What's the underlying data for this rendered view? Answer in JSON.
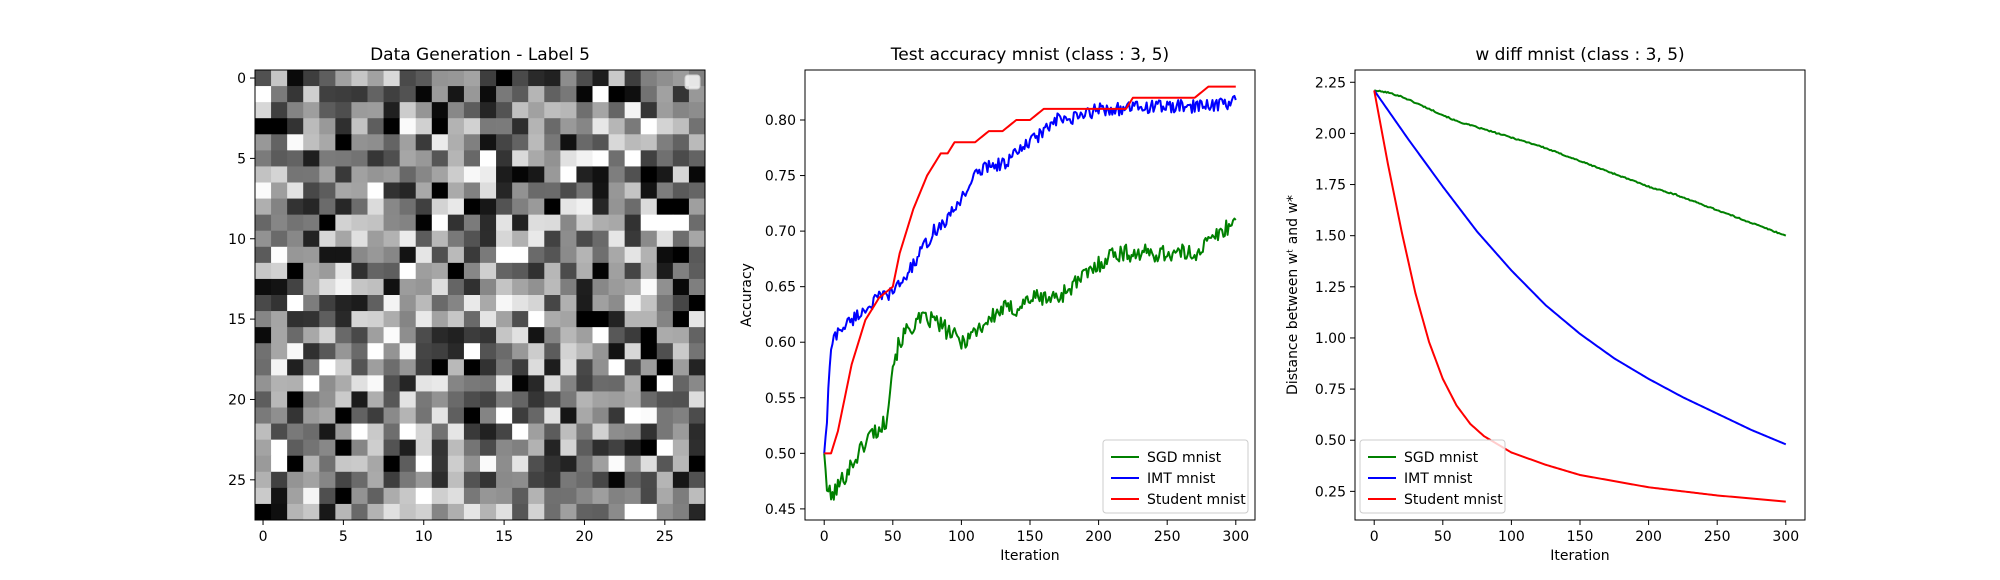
{
  "figure": {
    "panels": [
      {
        "title": "Data Generation - Label 5"
      },
      {
        "title": "Test accuracy mnist (class : 3, 5)",
        "xlabel": "Iteration",
        "ylabel": "Accuracy"
      },
      {
        "title": "w diff mnist (class : 3, 5)",
        "xlabel": "Iteration",
        "ylabel": "Distance between wᵗ and w*"
      }
    ]
  },
  "chart_data": [
    {
      "type": "heatmap",
      "title": "Data Generation - Label 5",
      "colormap": "gray",
      "rows": 28,
      "cols": 28,
      "seed": 5,
      "xlim": [
        -0.5,
        27.5
      ],
      "ylim": [
        27.5,
        -0.5
      ],
      "xticks": [
        0,
        5,
        10,
        15,
        20,
        25
      ],
      "yticks": [
        0,
        5,
        10,
        15,
        20,
        25
      ],
      "legend": {
        "location": "top-right",
        "entries": []
      },
      "note": "random gray pixel noise; individual pixel values not legible"
    },
    {
      "type": "line",
      "title": "Test accuracy mnist (class : 3, 5)",
      "xlabel": "Iteration",
      "ylabel": "Accuracy",
      "xlim": [
        -14,
        314
      ],
      "ylim": [
        0.44,
        0.845
      ],
      "xticks": [
        0,
        50,
        100,
        150,
        200,
        250,
        300
      ],
      "yticks": [
        0.45,
        0.5,
        0.55,
        0.6,
        0.65,
        0.7,
        0.75,
        0.8
      ],
      "ytick_labels": [
        "0.45",
        "0.50",
        "0.55",
        "0.60",
        "0.65",
        "0.70",
        "0.75",
        "0.80"
      ],
      "legend": {
        "location": "lower-right"
      },
      "series": [
        {
          "name": "SGD mnist",
          "color": "#008000",
          "noise": 0.008,
          "x": [
            0,
            2,
            5,
            10,
            15,
            20,
            25,
            30,
            35,
            40,
            45,
            50,
            55,
            60,
            70,
            80,
            90,
            100,
            110,
            120,
            130,
            140,
            150,
            160,
            170,
            180,
            190,
            200,
            210,
            220,
            230,
            240,
            250,
            260,
            270,
            280,
            290,
            300
          ],
          "y": [
            0.5,
            0.47,
            0.46,
            0.47,
            0.48,
            0.49,
            0.5,
            0.51,
            0.52,
            0.52,
            0.53,
            0.58,
            0.6,
            0.61,
            0.62,
            0.62,
            0.61,
            0.6,
            0.61,
            0.62,
            0.63,
            0.63,
            0.64,
            0.64,
            0.64,
            0.65,
            0.66,
            0.67,
            0.68,
            0.68,
            0.68,
            0.68,
            0.68,
            0.68,
            0.68,
            0.69,
            0.7,
            0.71
          ]
        },
        {
          "name": "IMT mnist",
          "color": "#0000ff",
          "noise": 0.006,
          "x": [
            0,
            2,
            4,
            6,
            10,
            20,
            30,
            40,
            50,
            60,
            70,
            80,
            90,
            100,
            110,
            120,
            130,
            140,
            150,
            160,
            170,
            180,
            190,
            200,
            210,
            220,
            230,
            240,
            250,
            260,
            270,
            280,
            290,
            300
          ],
          "y": [
            0.5,
            0.53,
            0.58,
            0.6,
            0.61,
            0.62,
            0.63,
            0.64,
            0.645,
            0.66,
            0.68,
            0.7,
            0.71,
            0.73,
            0.75,
            0.76,
            0.76,
            0.77,
            0.78,
            0.79,
            0.8,
            0.8,
            0.805,
            0.81,
            0.81,
            0.81,
            0.812,
            0.812,
            0.812,
            0.812,
            0.812,
            0.814,
            0.814,
            0.818
          ]
        },
        {
          "name": "Student mnist",
          "color": "#ff0000",
          "noise": 0,
          "x": [
            0,
            5,
            10,
            15,
            20,
            25,
            30,
            35,
            40,
            45,
            50,
            55,
            60,
            65,
            70,
            75,
            80,
            85,
            90,
            95,
            100,
            110,
            120,
            125,
            130,
            140,
            150,
            160,
            170,
            200,
            210,
            220,
            225,
            240,
            250,
            260,
            270,
            280,
            290,
            300
          ],
          "y": [
            0.5,
            0.5,
            0.52,
            0.55,
            0.58,
            0.6,
            0.62,
            0.63,
            0.64,
            0.645,
            0.65,
            0.68,
            0.7,
            0.72,
            0.735,
            0.75,
            0.76,
            0.77,
            0.77,
            0.78,
            0.78,
            0.78,
            0.79,
            0.79,
            0.79,
            0.8,
            0.8,
            0.81,
            0.81,
            0.81,
            0.81,
            0.81,
            0.82,
            0.82,
            0.82,
            0.82,
            0.82,
            0.83,
            0.83,
            0.83
          ]
        }
      ]
    },
    {
      "type": "line",
      "title": "w diff mnist (class : 3, 5)",
      "xlabel": "Iteration",
      "ylabel": "Distance between wᵗ and w*",
      "xlim": [
        -14,
        314
      ],
      "ylim": [
        0.11,
        2.31
      ],
      "xticks": [
        0,
        50,
        100,
        150,
        200,
        250,
        300
      ],
      "yticks": [
        0.25,
        0.5,
        0.75,
        1.0,
        1.25,
        1.5,
        1.75,
        2.0,
        2.25
      ],
      "ytick_labels": [
        "0.25",
        "0.50",
        "0.75",
        "1.00",
        "1.25",
        "1.50",
        "1.75",
        "2.00",
        "2.25"
      ],
      "legend": {
        "location": "lower-left"
      },
      "series": [
        {
          "name": "SGD mnist",
          "color": "#008000",
          "noise": 0.003,
          "x": [
            0,
            10,
            20,
            30,
            40,
            50,
            60,
            70,
            80,
            90,
            100,
            120,
            140,
            160,
            180,
            200,
            220,
            240,
            260,
            280,
            300
          ],
          "y": [
            2.21,
            2.2,
            2.18,
            2.15,
            2.12,
            2.09,
            2.06,
            2.04,
            2.02,
            2.0,
            1.98,
            1.94,
            1.89,
            1.84,
            1.79,
            1.74,
            1.7,
            1.65,
            1.6,
            1.55,
            1.5
          ]
        },
        {
          "name": "IMT mnist",
          "color": "#0000ff",
          "noise": 0,
          "x": [
            0,
            25,
            50,
            75,
            100,
            125,
            150,
            175,
            200,
            225,
            250,
            275,
            300
          ],
          "y": [
            2.21,
            1.97,
            1.74,
            1.52,
            1.33,
            1.16,
            1.02,
            0.9,
            0.8,
            0.71,
            0.63,
            0.55,
            0.48
          ]
        },
        {
          "name": "Student mnist",
          "color": "#ff0000",
          "noise": 0,
          "x": [
            0,
            10,
            20,
            30,
            40,
            50,
            60,
            70,
            80,
            90,
            100,
            125,
            150,
            200,
            250,
            300
          ],
          "y": [
            2.21,
            1.85,
            1.52,
            1.22,
            0.98,
            0.8,
            0.67,
            0.58,
            0.52,
            0.48,
            0.44,
            0.38,
            0.33,
            0.27,
            0.23,
            0.2
          ]
        }
      ]
    }
  ]
}
